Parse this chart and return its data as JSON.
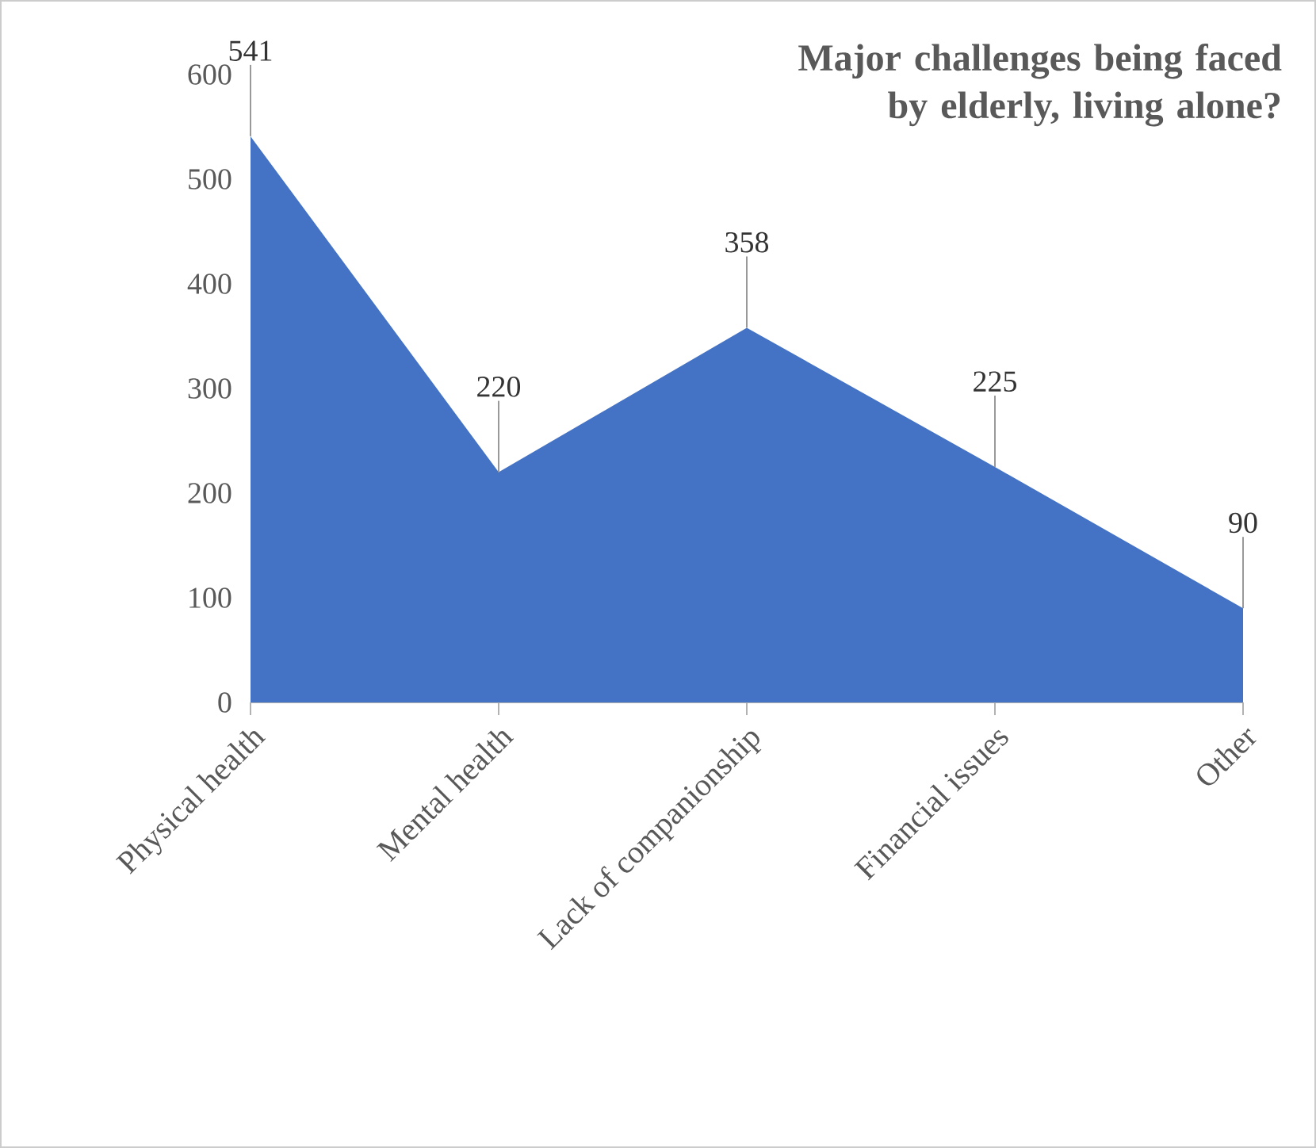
{
  "chart_data": {
    "type": "area",
    "title": "Major challenges being faced by elderly, living alone?",
    "categories": [
      "Physical health",
      "Mental health",
      "Lack of companionship",
      "Financial issues",
      "Other"
    ],
    "values": [
      541,
      220,
      358,
      225,
      90
    ],
    "color": "#4472c4",
    "ylim": [
      0,
      600
    ],
    "yticks": [
      0,
      100,
      200,
      300,
      400,
      500,
      600
    ],
    "data_labels": true
  }
}
